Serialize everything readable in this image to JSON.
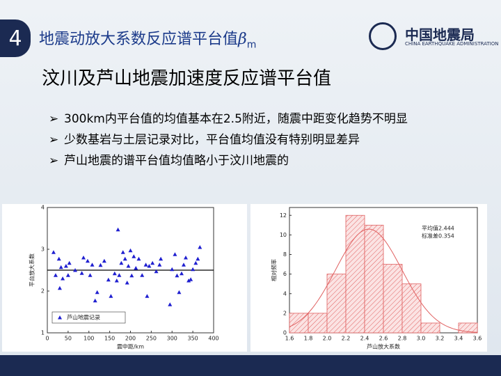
{
  "slide": {
    "number": "4",
    "title": "地震动放大系数反应谱平台值",
    "title_symbol": "β",
    "title_subscript": "m",
    "logo_name": "中国地震局",
    "logo_english": "CHINA EARTHQUAKE ADMINISTRATION",
    "subheading": "汶川及芦山地震加速度反应谱平台值",
    "bullets": [
      "300km内平台值的均值基本在2.5附近，随震中距变化趋势不明显",
      "少数基岩与土层记录对比，平台值均值没有特别明显差异",
      "芦山地震的谱平台值均值略小于汶川地震的"
    ]
  },
  "chart_data": [
    {
      "type": "scatter",
      "xlabel": "震中距/km",
      "ylabel": "平台放大系数",
      "x": [
        15,
        20,
        28,
        30,
        33,
        37,
        45,
        50,
        53,
        67,
        83,
        87,
        97,
        103,
        108,
        115,
        120,
        128,
        137,
        147,
        153,
        162,
        167,
        170,
        173,
        178,
        182,
        187,
        192,
        195,
        200,
        203,
        208,
        213,
        220,
        228,
        237,
        240,
        245,
        253,
        262,
        270,
        273,
        295,
        300,
        307,
        312,
        317,
        323,
        328,
        333,
        340,
        345,
        350,
        357,
        362,
        367
      ],
      "series": [
        {
          "name": "芦山地震记录",
          "color": "#1f1fd0",
          "values": [
            2.93,
            2.38,
            2.77,
            2.07,
            2.57,
            2.3,
            2.6,
            2.38,
            2.67,
            2.5,
            2.43,
            2.8,
            2.72,
            2.38,
            2.63,
            1.77,
            1.97,
            2.62,
            2.72,
            2.27,
            1.88,
            2.42,
            2.25,
            3.47,
            2.38,
            2.67,
            2.93,
            2.77,
            2.2,
            2.6,
            2.97,
            2.37,
            2.83,
            2.55,
            2.77,
            2.38,
            2.63,
            1.88,
            2.6,
            2.67,
            2.47,
            2.63,
            2.77,
            1.68,
            2.52,
            2.88,
            2.37,
            1.97,
            2.42,
            2.63,
            2.8,
            2.25,
            2.28,
            2.52,
            2.67,
            2.77,
            3.05
          ]
        }
      ],
      "mean_line": 2.5,
      "xlim": [
        0,
        400
      ],
      "xticks": [
        0,
        50,
        100,
        150,
        200,
        250,
        300,
        350,
        400
      ],
      "ylim": [
        1,
        4
      ],
      "yticks": [
        1,
        2,
        3,
        4
      ],
      "legend": "lower-left"
    },
    {
      "type": "histogram",
      "xlabel": "芦山放大系数",
      "ylabel": "相对频率",
      "color": "#e06060",
      "bins": [
        1.6,
        1.8,
        2.0,
        2.2,
        2.4,
        2.6,
        2.8,
        3.0,
        3.2,
        3.4,
        3.6
      ],
      "counts": [
        2,
        2,
        6,
        12,
        11,
        7,
        5,
        1,
        0,
        1
      ],
      "normal_fit": {
        "mean": 2.444,
        "sd": 0.354
      },
      "annotations": [
        "平均值2.444",
        "标准差0.354"
      ],
      "xlim": [
        1.6,
        3.6
      ],
      "xticks": [
        1.6,
        1.8,
        {
          "value": 2.0,
          "label": "2.0"
        },
        2.2,
        2.4,
        2.6,
        2.8,
        {
          "value": 3.0,
          "label": "3.0"
        },
        3.2,
        3.4,
        3.6
      ],
      "ylim": [
        0,
        12.8
      ],
      "yticks": [
        0,
        2,
        4,
        6,
        8,
        10,
        12
      ]
    }
  ]
}
